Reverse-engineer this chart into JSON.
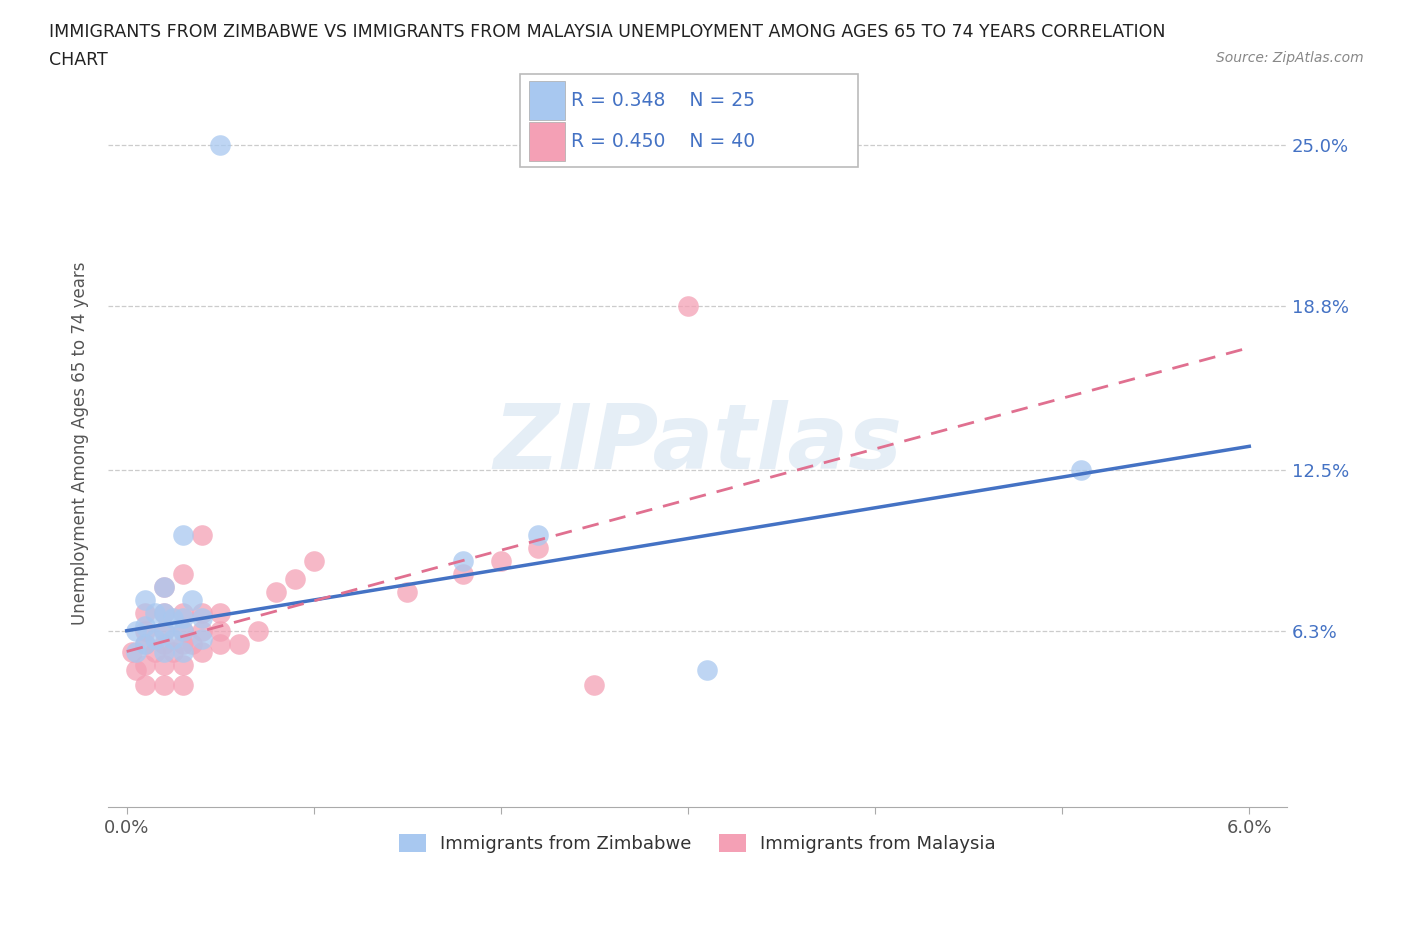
{
  "title_line1": "IMMIGRANTS FROM ZIMBABWE VS IMMIGRANTS FROM MALAYSIA UNEMPLOYMENT AMONG AGES 65 TO 74 YEARS CORRELATION",
  "title_line2": "CHART",
  "source": "Source: ZipAtlas.com",
  "ylabel": "Unemployment Among Ages 65 to 74 years",
  "xlim": [
    -0.001,
    0.062
  ],
  "ylim": [
    -0.005,
    0.275
  ],
  "xtick_positions": [
    0.0,
    0.01,
    0.02,
    0.03,
    0.04,
    0.05,
    0.06
  ],
  "xticklabels": [
    "0.0%",
    "",
    "",
    "",
    "",
    "",
    "6.0%"
  ],
  "ytick_positions": [
    0.063,
    0.125,
    0.188,
    0.25
  ],
  "ytick_labels": [
    "6.3%",
    "12.5%",
    "18.8%",
    "25.0%"
  ],
  "legend_label_zimbabwe": "Immigrants from Zimbabwe",
  "legend_label_malaysia": "Immigrants from Malaysia",
  "color_zimbabwe": "#a8c8f0",
  "color_malaysia": "#f4a0b5",
  "color_trend_zimbabwe": "#4472c4",
  "color_trend_malaysia": "#e07090",
  "watermark": "ZIPatlas",
  "zimbabwe_x": [
    0.0005,
    0.0005,
    0.001,
    0.001,
    0.001,
    0.0015,
    0.0015,
    0.002,
    0.002,
    0.002,
    0.002,
    0.0025,
    0.0025,
    0.003,
    0.003,
    0.003,
    0.003,
    0.0035,
    0.004,
    0.004,
    0.005,
    0.018,
    0.022,
    0.031,
    0.051
  ],
  "zimbabwe_y": [
    0.055,
    0.063,
    0.058,
    0.065,
    0.075,
    0.06,
    0.07,
    0.055,
    0.063,
    0.07,
    0.08,
    0.06,
    0.068,
    0.055,
    0.063,
    0.068,
    0.1,
    0.075,
    0.06,
    0.068,
    0.25,
    0.09,
    0.1,
    0.048,
    0.125
  ],
  "malaysia_x": [
    0.0003,
    0.0005,
    0.001,
    0.001,
    0.001,
    0.001,
    0.001,
    0.0015,
    0.002,
    0.002,
    0.002,
    0.002,
    0.002,
    0.002,
    0.0025,
    0.003,
    0.003,
    0.003,
    0.003,
    0.003,
    0.003,
    0.0035,
    0.004,
    0.004,
    0.004,
    0.004,
    0.005,
    0.005,
    0.005,
    0.006,
    0.007,
    0.008,
    0.009,
    0.01,
    0.015,
    0.018,
    0.02,
    0.022,
    0.025,
    0.03
  ],
  "malaysia_y": [
    0.055,
    0.048,
    0.042,
    0.05,
    0.058,
    0.063,
    0.07,
    0.055,
    0.042,
    0.05,
    0.058,
    0.063,
    0.07,
    0.08,
    0.055,
    0.042,
    0.05,
    0.058,
    0.063,
    0.07,
    0.085,
    0.058,
    0.055,
    0.063,
    0.07,
    0.1,
    0.058,
    0.063,
    0.07,
    0.058,
    0.063,
    0.078,
    0.083,
    0.09,
    0.078,
    0.085,
    0.09,
    0.095,
    0.042,
    0.188
  ],
  "trend_zim_x0": 0.0,
  "trend_zim_y0": 0.063,
  "trend_zim_x1": 0.06,
  "trend_zim_y1": 0.134,
  "trend_mal_x0": 0.0,
  "trend_mal_y0": 0.055,
  "trend_mal_x1": 0.06,
  "trend_mal_y1": 0.172
}
